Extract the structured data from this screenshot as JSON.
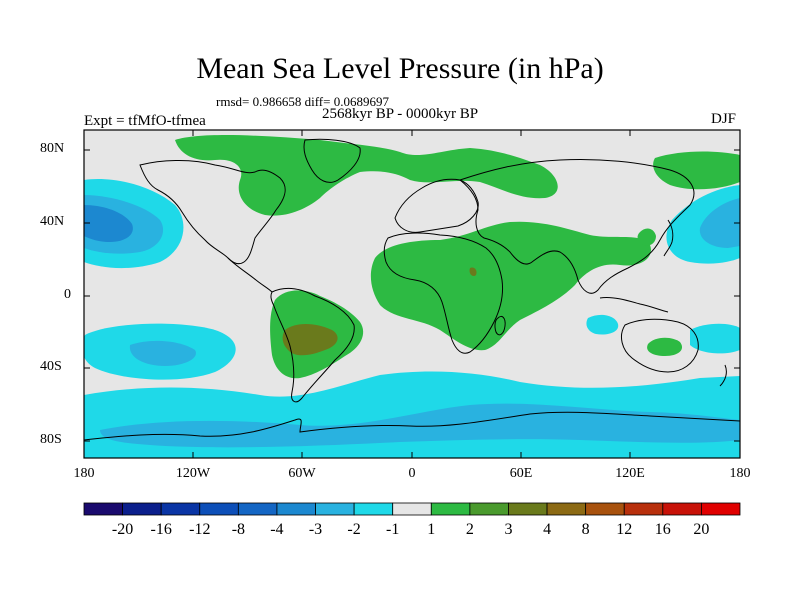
{
  "title": "Mean Sea Level Pressure (in hPa)",
  "stats_text": "rmsd= 0.986658 diff= 0.0689697",
  "period": "2568kyr BP - 0000kyr BP",
  "experiment": "Expt = tfMfO-tfmea",
  "season": "DJF",
  "lat_labels": [
    "80N",
    "40N",
    "0",
    "40S",
    "80S"
  ],
  "lon_labels": [
    "180",
    "120W",
    "60W",
    "0",
    "60E",
    "120E",
    "180"
  ],
  "colorbar": {
    "labels": [
      "-20",
      "-16",
      "-12",
      "-8",
      "-4",
      "-3",
      "-2",
      "-1",
      "1",
      "2",
      "3",
      "4",
      "8",
      "12",
      "16",
      "20"
    ],
    "colors": [
      "#1a0a6e",
      "#0b1f8c",
      "#0a35a5",
      "#0d4fb8",
      "#1466c4",
      "#1c88d0",
      "#29b2e0",
      "#1fd9e8",
      "#e6e6e6",
      "#2dba43",
      "#4a9a2d",
      "#6a7a1c",
      "#8c6a14",
      "#a8520e",
      "#b8300c",
      "#c81208",
      "#e00000"
    ]
  },
  "colors": {
    "land_neutral": "#e6e6e6",
    "ocean_light": "#1fd9e8",
    "ocean_mid": "#29b2e0",
    "ocean_dark": "#1c88d0",
    "green": "#2dba43",
    "olive": "#6a7a1c",
    "coast": "#000000"
  }
}
